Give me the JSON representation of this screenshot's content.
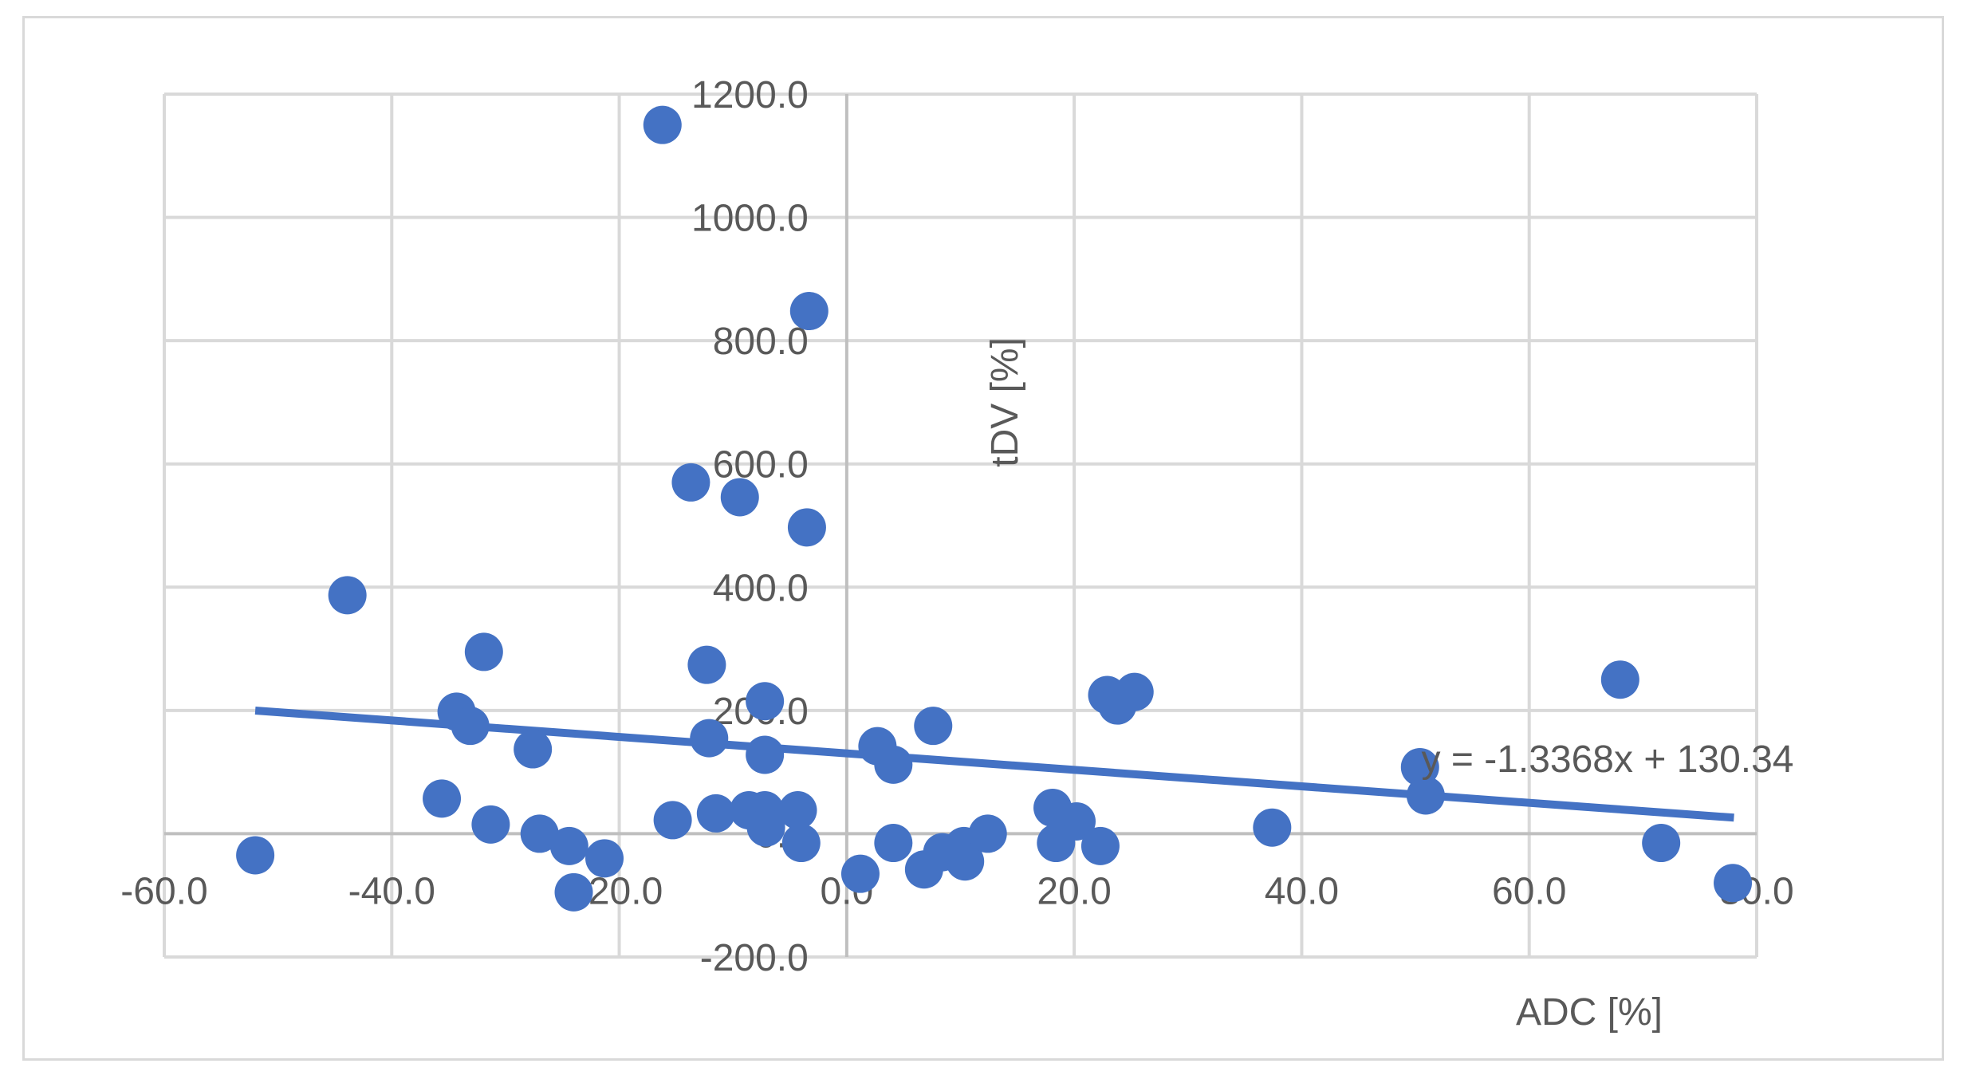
{
  "chart_data": {
    "type": "scatter",
    "xlabel": "ADC [%]",
    "ylabel": "tDV [%]",
    "xlim": [
      -60,
      80
    ],
    "ylim": [
      -200,
      1200
    ],
    "xticks": [
      -60,
      -40,
      -20,
      0,
      20,
      40,
      60,
      80
    ],
    "yticks": [
      -200,
      0,
      200,
      400,
      600,
      800,
      1000,
      1200
    ],
    "tick_labels_x": [
      "-60.0",
      "-40.0",
      "-20.0",
      "0.0",
      "20.0",
      "40.0",
      "60.0",
      "80.0"
    ],
    "tick_labels_y": [
      "-200.0",
      "0.0",
      "200.0",
      "400.0",
      "600.0",
      "800.0",
      "1000.0",
      "1200.0"
    ],
    "grid": true,
    "marker_color": "#4472c4",
    "trendline": {
      "equation": "y = -1.3368x + 130.34",
      "slope": -1.3368,
      "intercept": 130.34,
      "x_range": [
        -52,
        78
      ],
      "color": "#4472c4"
    },
    "series": [
      {
        "points": [
          [
            -16.2,
            1150
          ],
          [
            -3.3,
            848
          ],
          [
            -13.7,
            570
          ],
          [
            -9.4,
            546
          ],
          [
            -3.5,
            497
          ],
          [
            -43.9,
            387
          ],
          [
            -31.9,
            295
          ],
          [
            -12.3,
            274
          ],
          [
            -7.2,
            215
          ],
          [
            -34.3,
            198
          ],
          [
            -33.1,
            175
          ],
          [
            -12.1,
            155
          ],
          [
            -27.6,
            137
          ],
          [
            -7.2,
            128
          ],
          [
            2.7,
            142
          ],
          [
            4.1,
            112
          ],
          [
            7.6,
            175
          ],
          [
            -35.6,
            57
          ],
          [
            -31.3,
            15
          ],
          [
            -27.0,
            0
          ],
          [
            -24.4,
            -20
          ],
          [
            -21.3,
            -40
          ],
          [
            -24.0,
            -95
          ],
          [
            -15.3,
            22
          ],
          [
            -11.5,
            33
          ],
          [
            -8.6,
            38
          ],
          [
            -7.2,
            38
          ],
          [
            -4.3,
            38
          ],
          [
            -4.0,
            -15
          ],
          [
            -7.1,
            10
          ],
          [
            1.2,
            -65
          ],
          [
            4.1,
            -15
          ],
          [
            6.8,
            -58
          ],
          [
            8.4,
            -30
          ],
          [
            10.3,
            -20
          ],
          [
            10.4,
            -45
          ],
          [
            12.4,
            0
          ],
          [
            18.1,
            42
          ],
          [
            20.2,
            20
          ],
          [
            18.4,
            -15
          ],
          [
            22.3,
            -20
          ],
          [
            22.9,
            225
          ],
          [
            23.8,
            208
          ],
          [
            25.3,
            230
          ],
          [
            37.4,
            10
          ],
          [
            50.4,
            108
          ],
          [
            50.9,
            62
          ],
          [
            68.0,
            250
          ],
          [
            71.6,
            -15
          ],
          [
            77.9,
            -80
          ],
          [
            -52.0,
            -35
          ]
        ]
      }
    ]
  }
}
